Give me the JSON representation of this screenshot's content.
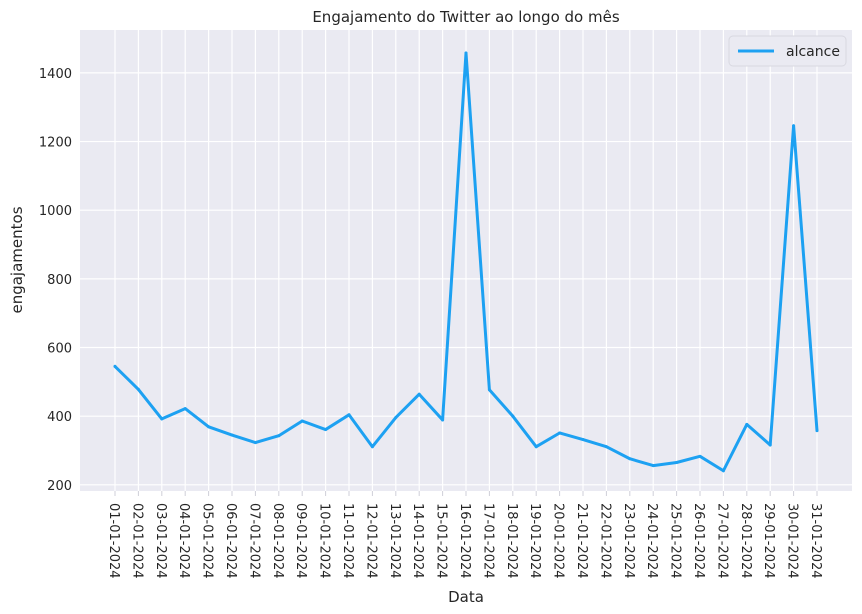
{
  "chart_data": {
    "type": "line",
    "title": "Engajamento do Twitter ao longo do mês",
    "xlabel": "Data",
    "ylabel": "engajamentos",
    "x": [
      "01-01-2024",
      "02-01-2024",
      "03-01-2024",
      "04-01-2024",
      "05-01-2024",
      "06-01-2024",
      "07-01-2024",
      "08-01-2024",
      "09-01-2024",
      "10-01-2024",
      "11-01-2024",
      "12-01-2024",
      "13-01-2024",
      "14-01-2024",
      "15-01-2024",
      "16-01-2024",
      "17-01-2024",
      "18-01-2024",
      "19-01-2024",
      "20-01-2024",
      "21-01-2024",
      "22-01-2024",
      "23-01-2024",
      "24-01-2024",
      "25-01-2024",
      "26-01-2024",
      "27-01-2024",
      "28-01-2024",
      "29-01-2024",
      "30-01-2024",
      "31-01-2024"
    ],
    "series": [
      {
        "name": "alcance",
        "color": "#1DA1F2",
        "values": [
          545,
          478,
          392,
          422,
          369,
          345,
          323,
          343,
          386,
          361,
          404,
          311,
          396,
          464,
          389,
          1458,
          477,
          400,
          311,
          351,
          332,
          311,
          276,
          256,
          265,
          283,
          241,
          376,
          316,
          1246,
          358
        ]
      }
    ],
    "ylim": [
      182,
      1525
    ],
    "yticks": [
      200,
      400,
      600,
      800,
      1000,
      1200,
      1400
    ],
    "grid": true,
    "legend": "top-right",
    "background": "#EAEAF2"
  }
}
